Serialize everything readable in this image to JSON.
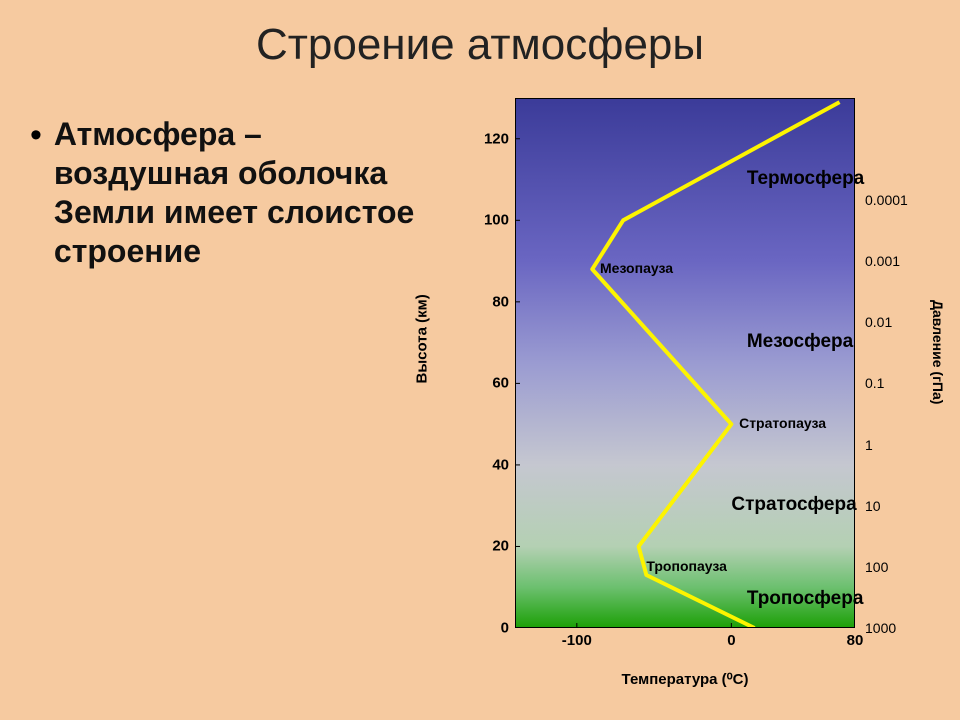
{
  "title": "Строение атмосферы",
  "bullet": "Атмосфера – воздушная оболочка Земли имеет слоистое строение",
  "chart": {
    "type": "line",
    "x_label": "Температура (⁰C)",
    "y_label_left": "Высота (км)",
    "y_label_right": "Давление (гПа)",
    "x_domain": [
      -140,
      80
    ],
    "y_domain": [
      0,
      130
    ],
    "x_ticks": [
      -100,
      0,
      80
    ],
    "y_ticks_left": [
      0,
      20,
      40,
      60,
      80,
      100,
      120
    ],
    "y_ticks_right": [
      {
        "h": 0,
        "label": "1000"
      },
      {
        "h": 15,
        "label": "100"
      },
      {
        "h": 30,
        "label": "10"
      },
      {
        "h": 45,
        "label": "1"
      },
      {
        "h": 60,
        "label": "0.1"
      },
      {
        "h": 75,
        "label": "0.01"
      },
      {
        "h": 90,
        "label": "0.001"
      },
      {
        "h": 105,
        "label": "0.0001"
      }
    ],
    "gradient_stops": [
      {
        "h": 0,
        "color": "#1ca006"
      },
      {
        "h": 10,
        "color": "#6cc06f"
      },
      {
        "h": 20,
        "color": "#b4d0b3"
      },
      {
        "h": 40,
        "color": "#c5c7d0"
      },
      {
        "h": 65,
        "color": "#9a9bd1"
      },
      {
        "h": 90,
        "color": "#6a66c2"
      },
      {
        "h": 130,
        "color": "#3b3b99"
      }
    ],
    "line_color": "#fdf400",
    "line_width": 4,
    "temp_profile": [
      {
        "temp": 15,
        "height": 0
      },
      {
        "temp": -55,
        "height": 13
      },
      {
        "temp": -60,
        "height": 20
      },
      {
        "temp": 0,
        "height": 50
      },
      {
        "temp": -90,
        "height": 88
      },
      {
        "temp": -70,
        "height": 100
      },
      {
        "temp": 70,
        "height": 129
      }
    ],
    "layer_labels": [
      {
        "text": "Тропосфера",
        "temp": 10,
        "height": 7,
        "fontsize": 19
      },
      {
        "text": "Тропопауза",
        "temp": -55,
        "height": 15,
        "fontsize": 14
      },
      {
        "text": "Стратосфера",
        "temp": 0,
        "height": 30,
        "fontsize": 19
      },
      {
        "text": "Стратопауза",
        "temp": 5,
        "height": 50,
        "fontsize": 14
      },
      {
        "text": "Мезосфера",
        "temp": 10,
        "height": 70,
        "fontsize": 19
      },
      {
        "text": "Мезопауза",
        "temp": -85,
        "height": 88,
        "fontsize": 14
      },
      {
        "text": "Термосфера",
        "temp": 10,
        "height": 110,
        "fontsize": 19
      }
    ],
    "background_outside": "#f6caa0",
    "tick_color": "#000000"
  }
}
